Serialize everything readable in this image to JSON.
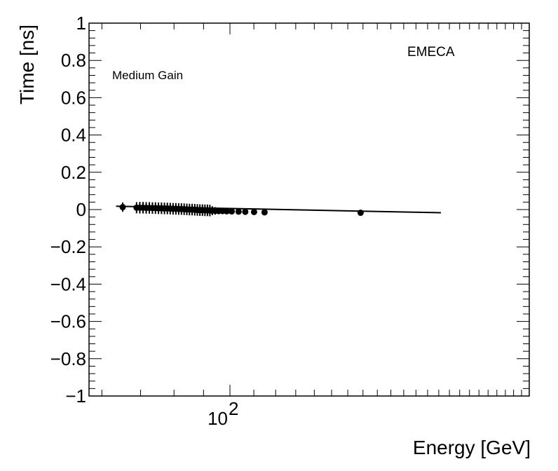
{
  "chart_data": {
    "type": "scatter",
    "xlabel": "Energy [GeV]",
    "ylabel": "Time [ns]",
    "x_scale": "log",
    "xlim": [
      57,
      330
    ],
    "ylim": [
      -1,
      1
    ],
    "y_ticks": [
      "1",
      "0.8",
      "0.6",
      "0.4",
      "0.2",
      "0",
      "−0.2",
      "−0.4",
      "−0.6",
      "−0.8",
      "−1"
    ],
    "x_tick_major": {
      "base": "10",
      "exponent": "2",
      "value": 100
    },
    "annotations": {
      "region": "EMECA",
      "gain": "Medium Gain"
    },
    "fit_line": {
      "x": [
        63.5,
        232
      ],
      "y": [
        0.018,
        -0.017
      ]
    },
    "series": [
      {
        "x": [
          65.2,
          68.9,
          69.8,
          70.7,
          71.6,
          72.5,
          73.4,
          74.3,
          75.2,
          76.1,
          77.0,
          77.9,
          78.8,
          79.7,
          80.6,
          81.5,
          82.4,
          83.3,
          84.2,
          85.1,
          86.0,
          86.9,
          87.8,
          88.7,
          89.6,
          90.5,
          91.4,
          92.3,
          93.2,
          94.3,
          95.6,
          97.1,
          98.7,
          100.7,
          103.5,
          106.3,
          110.1,
          114.8,
          168.4
        ],
        "y": [
          0.013,
          0.01,
          0.01,
          0.01,
          0.009,
          0.009,
          0.008,
          0.008,
          0.007,
          0.007,
          0.006,
          0.006,
          0.005,
          0.004,
          0.004,
          0.003,
          0.003,
          0.002,
          0.001,
          0.0,
          0.0,
          -0.001,
          -0.002,
          -0.003,
          -0.003,
          -0.004,
          -0.004,
          -0.005,
          -0.006,
          -0.007,
          -0.008,
          -0.008,
          -0.009,
          -0.01,
          -0.011,
          -0.012,
          -0.013,
          -0.015,
          -0.017
        ],
        "err": [
          0.025,
          0.03,
          0.031,
          0.031,
          0.031,
          0.031,
          0.031,
          0.031,
          0.031,
          0.031,
          0.031,
          0.031,
          0.031,
          0.031,
          0.031,
          0.031,
          0.031,
          0.031,
          0.031,
          0.031,
          0.031,
          0.031,
          0.031,
          0.031,
          0.031,
          0.031,
          0.031,
          0.031,
          0.024,
          0.02,
          0.017,
          0.015,
          0.012,
          0.01,
          0.009,
          0.008,
          0.006,
          0.005,
          0.004
        ]
      }
    ]
  }
}
